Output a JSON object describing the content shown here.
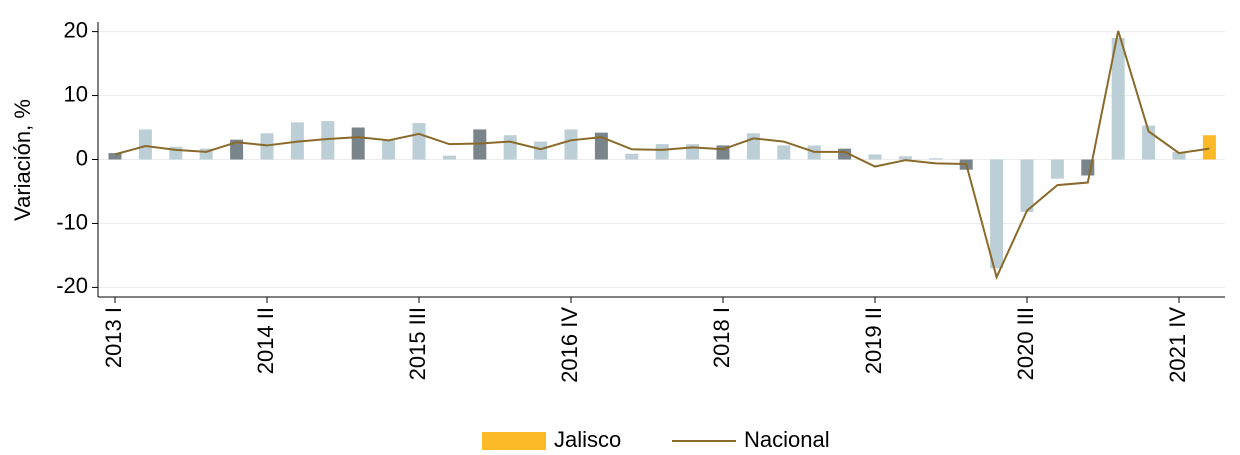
{
  "chart_data": {
    "type": "bar_line",
    "y_label": "Variación, %",
    "categories": [
      "2013 I",
      null,
      null,
      null,
      null,
      "2014 II",
      null,
      null,
      null,
      null,
      "2015 III",
      null,
      null,
      null,
      null,
      "2016 IV",
      null,
      null,
      null,
      null,
      "2018 I",
      null,
      null,
      null,
      null,
      "2019 II",
      null,
      null,
      null,
      null,
      "2020 III",
      null,
      null,
      null,
      null,
      "2021 IV",
      null
    ],
    "series": [
      {
        "name": "Jalisco",
        "type": "bar",
        "color": "#fbb927",
        "colors": [
          "#7a858b",
          "#bccfd6",
          "#bccfd6",
          "#bccfd6",
          "#7a858b",
          "#bccfd6",
          "#bccfd6",
          "#bccfd6",
          "#7a858b",
          "#bccfd6",
          "#bccfd6",
          "#bccfd6",
          "#7a858b",
          "#bccfd6",
          "#bccfd6",
          "#bccfd6",
          "#7a858b",
          "#bccfd6",
          "#bccfd6",
          "#bccfd6",
          "#7a858b",
          "#bccfd6",
          "#bccfd6",
          "#bccfd6",
          "#7a858b",
          "#bccfd6",
          "#bccfd6",
          "#bccfd6",
          "#7a858b",
          "#bccfd6",
          "#bccfd6",
          "#bccfd6",
          "#7a858b",
          "#bccfd6",
          "#bccfd6",
          "#bccfd6",
          "#fbb927"
        ],
        "values": [
          1.0,
          4.7,
          2.0,
          1.7,
          3.1,
          4.1,
          5.8,
          6.0,
          5.0,
          3.0,
          5.7,
          0.6,
          4.7,
          3.8,
          2.8,
          4.7,
          4.2,
          0.9,
          2.4,
          2.4,
          2.2,
          4.1,
          2.2,
          2.2,
          1.7,
          0.8,
          0.5,
          0.2,
          -1.6,
          -17.0,
          -8.2,
          -3.0,
          -2.5,
          19.0,
          5.3,
          1.2,
          3.8
        ]
      },
      {
        "name": "Nacional",
        "type": "line",
        "color": "#8a6a2a",
        "values": [
          0.8,
          2.1,
          1.5,
          1.2,
          2.7,
          2.2,
          2.8,
          3.2,
          3.5,
          3.0,
          4.0,
          2.4,
          2.5,
          2.8,
          1.6,
          3.0,
          3.5,
          1.6,
          1.5,
          1.9,
          1.6,
          3.3,
          2.8,
          1.2,
          1.2,
          -1.1,
          -0.1,
          -0.6,
          -0.7,
          -18.4,
          -8.0,
          -4.0,
          -3.6,
          20.1,
          4.4,
          1.0,
          1.7
        ]
      }
    ],
    "ylim": [
      -21.5,
      21.5
    ],
    "yticks": [
      -20,
      -10,
      0,
      10,
      20
    ],
    "grid": true,
    "legend": "bottom"
  }
}
